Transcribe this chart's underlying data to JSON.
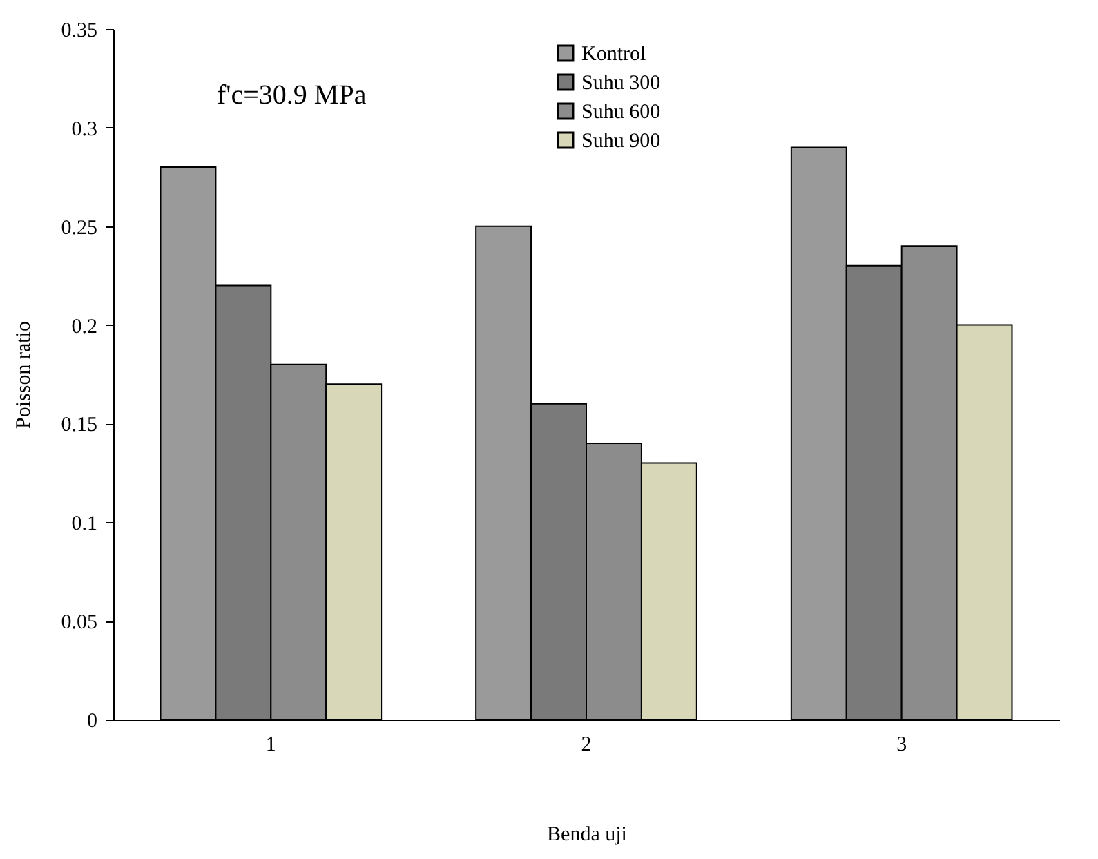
{
  "chart_data": {
    "type": "bar",
    "xlabel": "Benda uji",
    "ylabel": "Poisson ratio",
    "annotations": [
      "f'c=30.9 MPa"
    ],
    "categories": [
      "1",
      "2",
      "3"
    ],
    "series": [
      {
        "name": "Kontrol",
        "color": "#9a9a9a",
        "values": [
          0.28,
          0.25,
          0.29
        ]
      },
      {
        "name": "Suhu 300",
        "color": "#7a7a7a",
        "values": [
          0.22,
          0.16,
          0.23
        ]
      },
      {
        "name": "Suhu 600",
        "color": "#8c8c8c",
        "values": [
          0.18,
          0.14,
          0.24
        ]
      },
      {
        "name": "Suhu 900",
        "color": "#d8d8b8",
        "values": [
          0.17,
          0.13,
          0.2
        ]
      }
    ],
    "ylim": [
      0,
      0.35
    ],
    "yticks": [
      0,
      0.05,
      0.1,
      0.15,
      0.2,
      0.25,
      0.3,
      0.35
    ],
    "grid": false,
    "legend": "top"
  }
}
